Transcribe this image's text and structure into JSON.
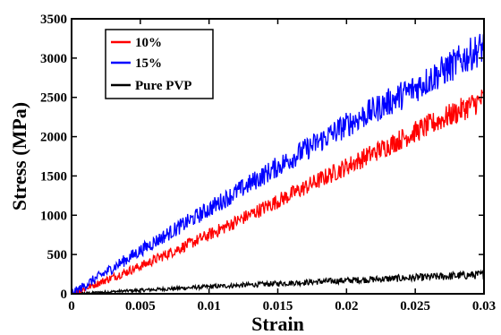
{
  "chart_data": {
    "type": "line",
    "xlabel": "Strain",
    "ylabel": "Stress (MPa)",
    "xlim": [
      0,
      0.03
    ],
    "ylim": [
      0,
      3500
    ],
    "xticks": [
      0,
      0.005,
      0.01,
      0.015,
      0.02,
      0.025,
      0.03
    ],
    "xtick_labels": [
      "0",
      "0.005",
      "0.01",
      "0.015",
      "0.02",
      "0.025",
      "0.03"
    ],
    "yticks": [
      0,
      500,
      1000,
      1500,
      2000,
      2500,
      3000,
      3500
    ],
    "ytick_labels": [
      "0",
      "500",
      "1000",
      "1500",
      "2000",
      "2500",
      "3000",
      "3500"
    ],
    "grid": false,
    "legend_position": "top-left",
    "series": [
      {
        "name": "10%",
        "color": "#ff0000",
        "x": [
          0,
          0.005,
          0.01,
          0.015,
          0.02,
          0.025,
          0.03
        ],
        "y": [
          0,
          350,
          750,
          1180,
          1620,
          2060,
          2480
        ],
        "noise_band": 160
      },
      {
        "name": "15%",
        "color": "#0000ff",
        "x": [
          0,
          0.005,
          0.01,
          0.015,
          0.02,
          0.025,
          0.03
        ],
        "y": [
          0,
          550,
          1080,
          1620,
          2150,
          2620,
          3150
        ],
        "noise_band": 220
      },
      {
        "name": "Pure PVP",
        "color": "#000000",
        "x": [
          0,
          0.005,
          0.01,
          0.015,
          0.02,
          0.025,
          0.03
        ],
        "y": [
          0,
          45,
          90,
          130,
          170,
          205,
          245
        ],
        "noise_band": 55
      }
    ]
  }
}
